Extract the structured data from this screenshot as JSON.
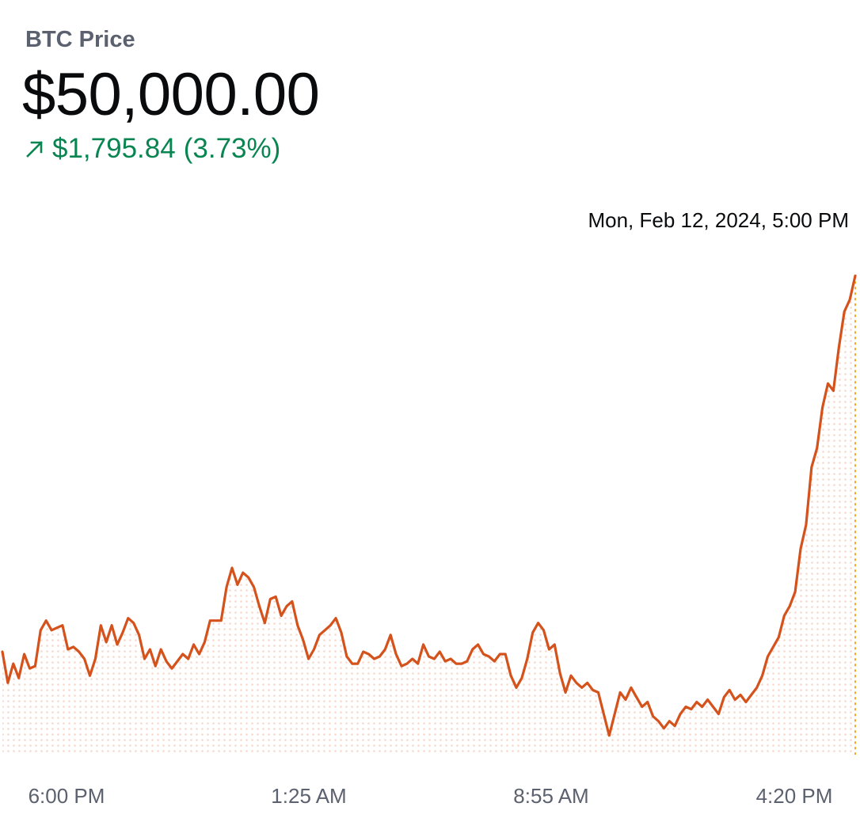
{
  "header": {
    "label": "BTC Price",
    "price": "$50,000.00",
    "change_amount": "$1,795.84",
    "change_percent": "(3.73%)",
    "change_direction_icon": "arrow-up-right-icon"
  },
  "tooltip": {
    "timestamp": "Mon, Feb 12, 2024, 5:00 PM"
  },
  "colors": {
    "line": "#d4521c",
    "fill_dots": "#f6d9cc",
    "positive": "#098551",
    "marker": "#f5a623"
  },
  "chart_data": {
    "type": "area",
    "title": "BTC Price",
    "xlabel": "",
    "ylabel": "",
    "x_ticks": [
      "6:00 PM",
      "1:25 AM",
      "8:55 AM",
      "4:20 PM"
    ],
    "ylim": [
      48000,
      50100
    ],
    "grid": false,
    "legend": "none",
    "series": [
      {
        "values": [
          48430,
          48300,
          48380,
          48320,
          48420,
          48360,
          48370,
          48520,
          48560,
          48520,
          48530,
          48540,
          48440,
          48450,
          48430,
          48400,
          48330,
          48400,
          48540,
          48470,
          48540,
          48460,
          48510,
          48570,
          48550,
          48500,
          48400,
          48440,
          48370,
          48440,
          48390,
          48360,
          48390,
          48420,
          48400,
          48460,
          48420,
          48470,
          48560,
          48560,
          48560,
          48700,
          48780,
          48710,
          48760,
          48740,
          48700,
          48620,
          48550,
          48650,
          48660,
          48580,
          48620,
          48640,
          48540,
          48480,
          48400,
          48440,
          48500,
          48520,
          48540,
          48570,
          48510,
          48410,
          48380,
          48380,
          48430,
          48420,
          48400,
          48410,
          48440,
          48500,
          48420,
          48370,
          48380,
          48400,
          48380,
          48460,
          48410,
          48400,
          48430,
          48390,
          48400,
          48380,
          48380,
          48390,
          48440,
          48460,
          48420,
          48410,
          48390,
          48420,
          48420,
          48330,
          48280,
          48320,
          48400,
          48510,
          48550,
          48520,
          48440,
          48460,
          48340,
          48260,
          48330,
          48300,
          48280,
          48300,
          48270,
          48260,
          48170,
          48080,
          48170,
          48260,
          48230,
          48280,
          48240,
          48200,
          48220,
          48160,
          48140,
          48110,
          48140,
          48120,
          48170,
          48200,
          48190,
          48220,
          48200,
          48230,
          48200,
          48170,
          48240,
          48270,
          48230,
          48250,
          48220,
          48250,
          48280,
          48330,
          48410,
          48450,
          48490,
          48580,
          48620,
          48680,
          48860,
          48960,
          49200,
          49280,
          49450,
          49550,
          49520,
          49700,
          49850,
          49900,
          50000
        ]
      }
    ]
  }
}
